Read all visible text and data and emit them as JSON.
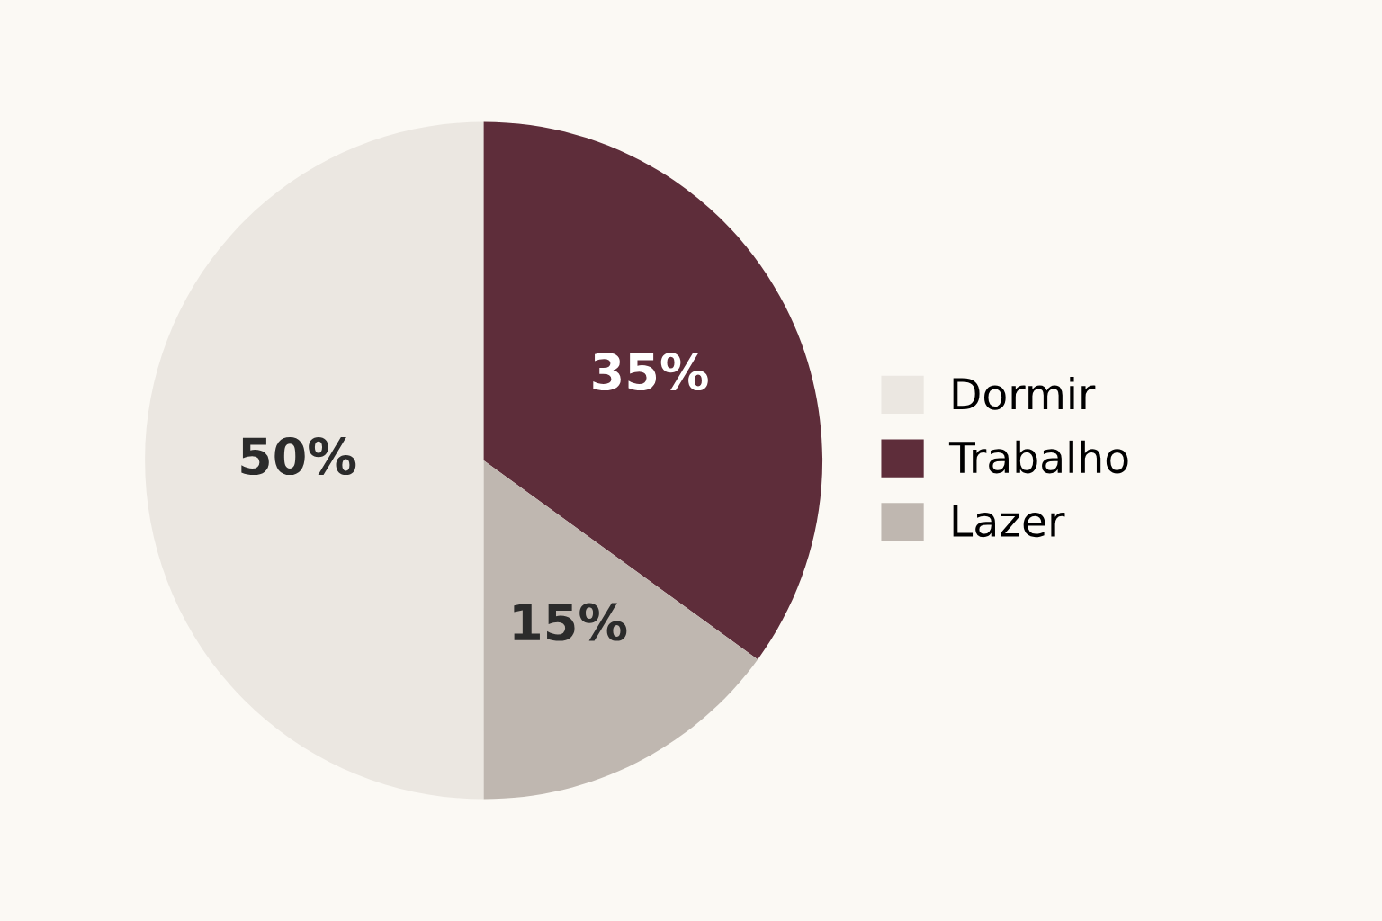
{
  "chart_data": {
    "type": "pie",
    "categories": [
      "Dormir",
      "Trabalho",
      "Lazer"
    ],
    "values": [
      50,
      35,
      15
    ],
    "colors": [
      "#ebe7e1",
      "#5e2d3a",
      "#bfb7b0"
    ],
    "value_labels": [
      "50%",
      "35%",
      "15%"
    ],
    "legend": "right"
  }
}
